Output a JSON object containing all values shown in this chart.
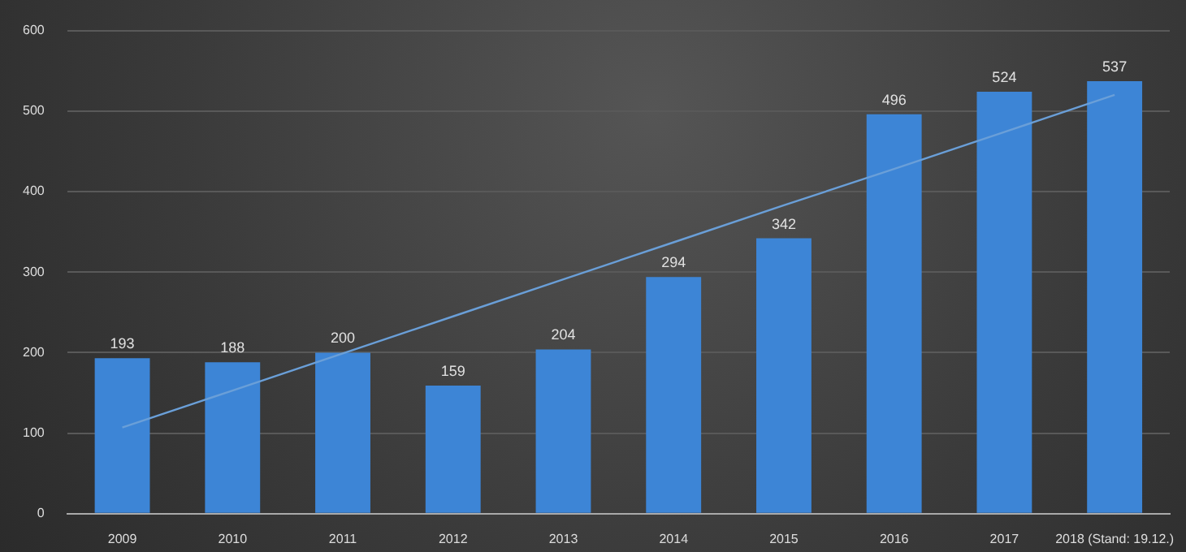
{
  "chart_data": {
    "type": "bar",
    "categories": [
      "2009",
      "2010",
      "2011",
      "2012",
      "2013",
      "2014",
      "2015",
      "2016",
      "2017",
      "2018 (Stand: 19.12.)"
    ],
    "series": [
      {
        "color": "#3d85d6",
        "values": [
          193,
          188,
          200,
          159,
          204,
          294,
          342,
          496,
          524,
          537
        ],
        "value_labels": [
          "193",
          "188",
          "200",
          "159",
          "204",
          "294",
          "342",
          "496",
          "524",
          "537"
        ]
      },
      {
        "type": "line",
        "color": "#6a9fd8",
        "values": [
          107,
          153,
          199,
          245,
          291,
          337,
          383,
          428,
          474,
          520
        ]
      }
    ],
    "ylim": [
      0,
      600
    ],
    "yticks": [
      0,
      100,
      200,
      300,
      400,
      500,
      600
    ],
    "grid": "y",
    "legend": false,
    "marker": "none"
  }
}
